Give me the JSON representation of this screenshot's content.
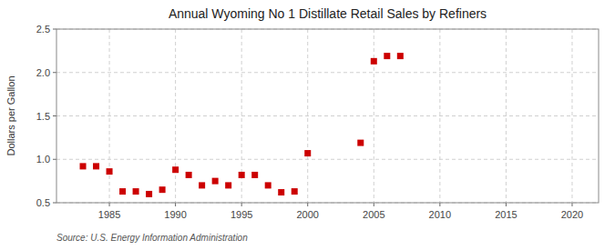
{
  "chart_data": {
    "type": "scatter",
    "title": "Annual Wyoming No 1 Distillate Retail Sales by Refiners",
    "ylabel": "Dollars per Gallon",
    "annotation": "Source: U.S. Energy Information Administration",
    "x": [
      1983,
      1984,
      1985,
      1986,
      1987,
      1988,
      1989,
      1990,
      1991,
      1992,
      1993,
      1994,
      1995,
      1996,
      1997,
      1998,
      1999,
      2000,
      2004,
      2005,
      2006,
      2007
    ],
    "values": [
      0.92,
      0.92,
      0.86,
      0.63,
      0.63,
      0.6,
      0.65,
      0.88,
      0.82,
      0.7,
      0.75,
      0.7,
      0.82,
      0.82,
      0.7,
      0.62,
      0.63,
      1.07,
      1.19,
      2.13,
      2.19,
      2.19
    ],
    "color": "#cc0000",
    "marker": "square",
    "xlim": [
      1981,
      2022
    ],
    "ylim": [
      0.5,
      2.5
    ],
    "xticks": [
      1985,
      1990,
      1995,
      2000,
      2005,
      2010,
      2015,
      2020
    ],
    "yticks": [
      0.5,
      {
        "value": 1.0,
        "label": "1.0"
      },
      1.5,
      {
        "value": 2.0,
        "label": "2.0"
      },
      2.5
    ],
    "grid": true
  }
}
